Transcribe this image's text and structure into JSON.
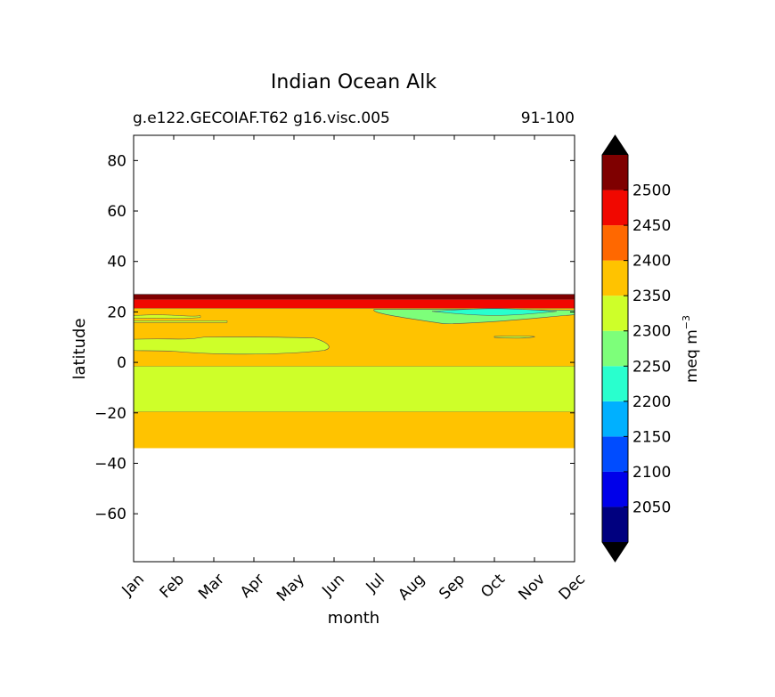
{
  "chart_data": {
    "type": "contour",
    "title": "Indian Ocean Alk",
    "subtitle_left": "g.e122.GECOIAF.T62 g16.visc.005",
    "subtitle_right": "91-100",
    "xlabel": "month",
    "ylabel": "latitude",
    "x_ticks": [
      "Jan",
      "Feb",
      "Mar",
      "Apr",
      "May",
      "Jun",
      "Jul",
      "Aug",
      "Sep",
      "Oct",
      "Nov",
      "Dec"
    ],
    "y_ticks": [
      80,
      60,
      40,
      20,
      0,
      -20,
      -40,
      -60
    ],
    "y_tick_labels": [
      "80",
      "60",
      "40",
      "20",
      "0",
      "−20",
      "−40",
      "−60"
    ],
    "ylim": [
      -79,
      90
    ],
    "colorbar": {
      "label": "meq m",
      "label_sup": "−3",
      "levels": [
        2000,
        2050,
        2100,
        2150,
        2200,
        2250,
        2300,
        2350,
        2400,
        2450,
        2500,
        2550
      ],
      "tick_labels": [
        "2050",
        "2100",
        "2150",
        "2200",
        "2250",
        "2300",
        "2350",
        "2400",
        "2450",
        "2500"
      ],
      "colors": [
        "#00007f",
        "#0000ea",
        "#004cff",
        "#00b0ff",
        "#29ffce",
        "#7dff7a",
        "#ceff29",
        "#ffc300",
        "#ff6800",
        "#f10800",
        "#7f0000"
      ],
      "extend": "both",
      "extend_color": "#000000"
    },
    "bands": [
      {
        "lat_min": -34,
        "lat_max": -19.5,
        "value_range": "2350-2400"
      },
      {
        "lat_min": -19.5,
        "lat_max": -1.5,
        "value_range": "2300-2350"
      },
      {
        "lat_min": -1.5,
        "lat_max": 21.5,
        "value_range": "2350-2400"
      },
      {
        "lat_min": 21.5,
        "lat_max": 25,
        "value_range": "2450-2500"
      },
      {
        "lat_min": 25,
        "lat_max": 27,
        "value_range": "2500-2550"
      }
    ],
    "patches": [
      {
        "name": "mar-may-low",
        "month_range": [
          "Jan",
          "Jun"
        ],
        "lat_range": [
          3,
          10
        ],
        "value_range": "2300-2350"
      },
      {
        "name": "jul-dec-low",
        "month_range": [
          "Jul",
          "Dec"
        ],
        "lat_range": [
          15,
          21
        ],
        "value_range": "2250-2300"
      },
      {
        "name": "oct-low",
        "month_range": [
          "Oct",
          "Nov"
        ],
        "lat_range": [
          9.5,
          10.5
        ],
        "value_range": "2300-2350"
      }
    ]
  }
}
